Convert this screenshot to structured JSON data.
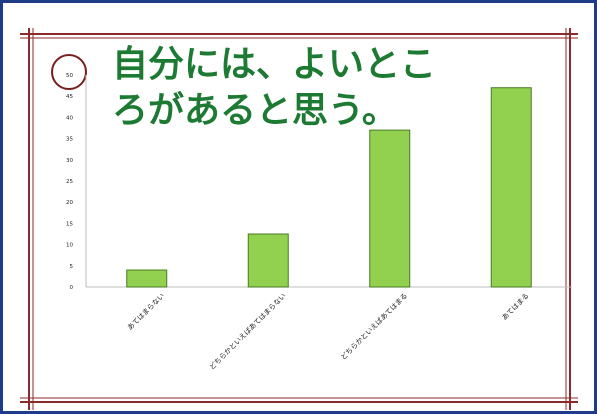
{
  "chart_data": {
    "type": "bar",
    "title_lines": [
      "自分には、よいとこ",
      "ろがあると思う。"
    ],
    "categories": [
      "あてはまらない",
      "どちらかといえばあてはまらない",
      "どちらかといえばあてはまる",
      "あてはまる"
    ],
    "values": [
      4,
      12.5,
      37,
      47
    ],
    "ylim": [
      0,
      50
    ],
    "yticks": [
      "0",
      "5",
      "10",
      "15",
      "20",
      "25",
      "30",
      "35",
      "40",
      "45",
      "50"
    ],
    "grid": false,
    "legend": "none"
  },
  "colors": {
    "bar_fill": "#92d050",
    "bar_stroke": "#4a7a22",
    "title": "#1d7a33",
    "frame_outer": "#1f3c88",
    "frame_double": "#8b2a2a",
    "circle_marker": "#7a1f1f",
    "axis": "#bfbfbf"
  }
}
